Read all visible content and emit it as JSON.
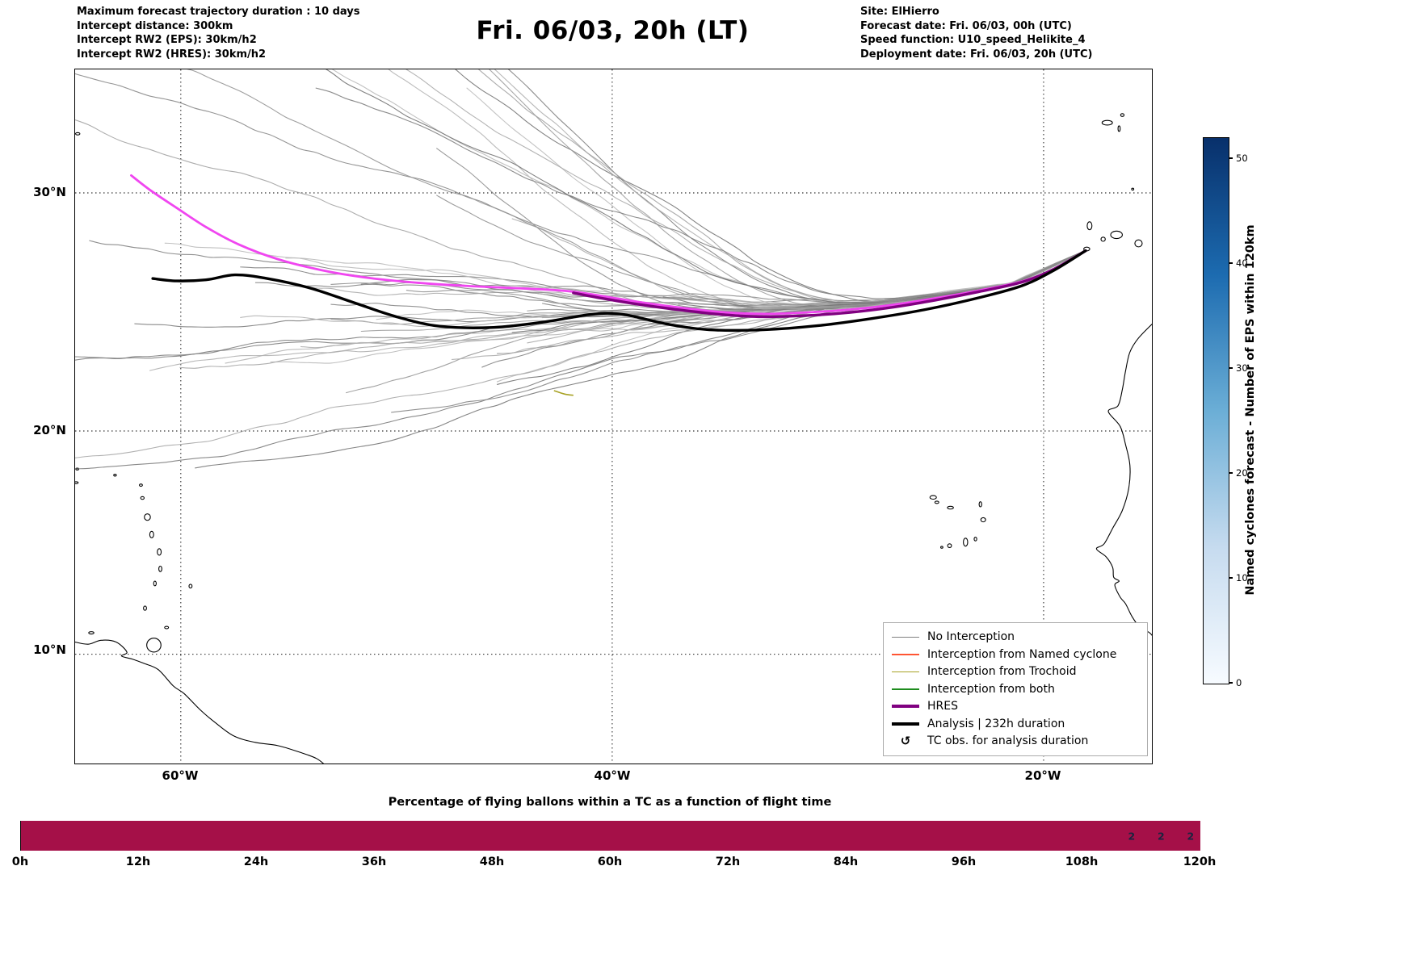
{
  "header": {
    "left_lines": [
      "Maximum forecast trajectory duration : 10 days",
      "Intercept distance: 300km",
      "Intercept RW2 (EPS):  30km/h2",
      "Intercept RW2 (HRES): 30km/h2"
    ],
    "title": "Fri. 06/03, 20h (LT)",
    "right_lines": [
      "Site: ElHierro",
      "Forecast date: Fri. 06/03, 00h (UTC)",
      "Speed function: U10_speed_Helikite_4",
      "Deployment date: Fri. 06/03, 20h (UTC)"
    ]
  },
  "map": {
    "x_tick_labels": [
      "60°W",
      "40°W",
      "20°W"
    ],
    "y_tick_labels": [
      "30°N",
      "20°N",
      "10°N"
    ],
    "legend": {
      "items": [
        {
          "label": "No Interception",
          "color": "#7f7f7f",
          "width": 1.5
        },
        {
          "label": "Interception from Named cyclone",
          "color": "#ff5533",
          "width": 1.5
        },
        {
          "label": "Interception from Trochoid",
          "color": "#a8a224",
          "width": 1.5
        },
        {
          "label": "Interception from both",
          "color": "#1e8c1e",
          "width": 1.5
        },
        {
          "label": "HRES",
          "color": "#800080",
          "width": 4
        },
        {
          "label": "Analysis | 232h duration",
          "color": "#000000",
          "width": 4
        }
      ],
      "tc_obs": {
        "symbol": "↺",
        "label": "TC obs. for analysis duration"
      }
    }
  },
  "colorbar": {
    "label": "Named cyclones forecast - Number of EPS within 120km",
    "ticks": [
      0,
      10,
      20,
      30,
      40,
      50
    ],
    "vmin": 0,
    "vmax": 52,
    "gradient": [
      "#08306b",
      "#1c6bb0",
      "#6baed6",
      "#c6dbef",
      "#f7fbff"
    ]
  },
  "bottom_chart": {
    "title": "Percentage of flying ballons within a TC as a function of flight time",
    "x_ticks": [
      "0h",
      "12h",
      "24h",
      "36h",
      "48h",
      "60h",
      "72h",
      "84h",
      "96h",
      "108h",
      "120h"
    ],
    "bar_color": "#a51048",
    "annotation_color": "#1a2440",
    "annotations": [
      {
        "hour": 113,
        "label": "2"
      },
      {
        "hour": 116,
        "label": "2"
      },
      {
        "hour": 119,
        "label": "2"
      }
    ]
  },
  "chart_data": [
    {
      "type": "line",
      "title": "Fri. 06/03, 20h (LT)",
      "projection": "mercator",
      "lon_range": [
        -64.9,
        -14.98
      ],
      "lat_range": [
        4.97,
        34.8
      ],
      "grid_lons": [
        -60,
        -40,
        -20
      ],
      "grid_lats": [
        30,
        20,
        10
      ],
      "origin": {
        "site": "ElHierro",
        "lon": -18.05,
        "lat": 27.65
      },
      "ensemble": {
        "count": 62,
        "seed": 13,
        "stroke_width": 1.1
      },
      "analysis_track": [
        [
          -18.05,
          27.65
        ],
        [
          -19.5,
          26.85
        ],
        [
          -21,
          26.2
        ],
        [
          -23,
          25.7
        ],
        [
          -25.5,
          25.2
        ],
        [
          -28,
          24.82
        ],
        [
          -30.5,
          24.52
        ],
        [
          -33,
          24.35
        ],
        [
          -35.5,
          24.35
        ],
        [
          -37.5,
          24.6
        ],
        [
          -39.5,
          25.0
        ],
        [
          -41,
          25.0
        ],
        [
          -43,
          24.7
        ],
        [
          -45.5,
          24.45
        ],
        [
          -48,
          24.5
        ],
        [
          -50,
          24.9
        ],
        [
          -52,
          25.5
        ],
        [
          -54,
          26.1
        ],
        [
          -56,
          26.5
        ],
        [
          -57.5,
          26.65
        ],
        [
          -58.8,
          26.45
        ],
        [
          -60.2,
          26.4
        ],
        [
          -61.3,
          26.5
        ]
      ],
      "hres_track": [
        [
          -18.05,
          27.65
        ],
        [
          -19.5,
          26.9
        ],
        [
          -21,
          26.35
        ],
        [
          -23,
          25.95
        ],
        [
          -25,
          25.6
        ],
        [
          -27,
          25.3
        ],
        [
          -29,
          25.08
        ],
        [
          -31,
          24.95
        ],
        [
          -33,
          24.9
        ],
        [
          -35,
          25.0
        ],
        [
          -37,
          25.2
        ],
        [
          -39,
          25.45
        ],
        [
          -40.5,
          25.68
        ],
        [
          -41.8,
          25.9
        ]
      ],
      "eps_track": [
        [
          -18.05,
          27.65
        ],
        [
          -19.5,
          26.9
        ],
        [
          -21,
          26.38
        ],
        [
          -23,
          26.0
        ],
        [
          -25,
          25.68
        ],
        [
          -27,
          25.4
        ],
        [
          -29,
          25.2
        ],
        [
          -31,
          25.08
        ],
        [
          -33,
          25.02
        ],
        [
          -35,
          25.1
        ],
        [
          -37,
          25.3
        ],
        [
          -39,
          25.55
        ],
        [
          -41.8,
          25.95
        ],
        [
          -44,
          26.08
        ],
        [
          -46.5,
          26.18
        ],
        [
          -49,
          26.32
        ],
        [
          -51.5,
          26.55
        ],
        [
          -53.5,
          26.85
        ],
        [
          -55.5,
          27.3
        ],
        [
          -57.3,
          27.9
        ],
        [
          -58.8,
          28.6
        ],
        [
          -60.2,
          29.4
        ],
        [
          -61.4,
          30.1
        ],
        [
          -62.3,
          30.7
        ]
      ],
      "trochoid_track": [
        [
          -42.7,
          21.75
        ],
        [
          -42.2,
          21.6
        ],
        [
          -41.8,
          21.55
        ]
      ],
      "colors": {
        "analysis": "#000000",
        "hres": "#800080",
        "eps": "#f046f0",
        "trochoid": "#a8a224",
        "ensemble": "gray"
      },
      "basemap": {
        "coastlines": [
          [
            [
              -14.85,
              24.7
            ],
            [
              -15.6,
              24.0
            ],
            [
              -16.0,
              23.4
            ],
            [
              -16.2,
              22.6
            ],
            [
              -16.35,
              21.8
            ],
            [
              -16.55,
              21.1
            ],
            [
              -17.0,
              20.85
            ],
            [
              -16.45,
              20.2
            ],
            [
              -16.2,
              19.4
            ],
            [
              -16.0,
              18.5
            ],
            [
              -16.05,
              17.5
            ],
            [
              -16.35,
              16.5
            ],
            [
              -16.8,
              15.7
            ],
            [
              -17.2,
              15.0
            ],
            [
              -17.55,
              14.78
            ],
            [
              -17.1,
              14.42
            ],
            [
              -16.8,
              13.95
            ],
            [
              -16.75,
              13.5
            ],
            [
              -16.5,
              13.33
            ],
            [
              -16.7,
              13.15
            ],
            [
              -16.45,
              12.6
            ],
            [
              -16.2,
              12.3
            ],
            [
              -15.9,
              11.72
            ],
            [
              -15.55,
              11.25
            ],
            [
              -15.05,
              10.95
            ],
            [
              -14.65,
              10.4
            ],
            [
              -14.25,
              9.8
            ],
            [
              -13.8,
              9.2
            ],
            [
              -13.4,
              8.6
            ],
            [
              -13.15,
              8.0
            ],
            [
              -12.7,
              7.5
            ],
            [
              -12.0,
              7.0
            ],
            [
              -11.2,
              6.6
            ],
            [
              -10.4,
              6.1
            ],
            [
              -9.6,
              5.5
            ],
            [
              -8.9,
              4.9
            ]
          ],
          [
            [
              -65.0,
              10.58
            ],
            [
              -64.3,
              10.46
            ],
            [
              -63.7,
              10.64
            ],
            [
              -63.0,
              10.56
            ],
            [
              -62.5,
              10.1
            ],
            [
              -62.75,
              9.92
            ],
            [
              -62.25,
              9.78
            ],
            [
              -61.7,
              9.58
            ],
            [
              -61.05,
              9.3
            ],
            [
              -60.35,
              8.55
            ],
            [
              -59.85,
              8.2
            ],
            [
              -59.1,
              7.45
            ],
            [
              -58.45,
              6.9
            ],
            [
              -57.55,
              6.25
            ],
            [
              -56.55,
              5.95
            ],
            [
              -55.5,
              5.8
            ],
            [
              -54.5,
              5.5
            ],
            [
              -53.7,
              5.2
            ],
            [
              -53.2,
              4.8
            ]
          ]
        ],
        "islands": [
          [
            -17.05,
            32.78,
            0.24,
            0.1
          ],
          [
            -16.35,
            33.08,
            0.08,
            0.06
          ],
          [
            -16.5,
            32.55,
            0.05,
            0.12
          ],
          [
            -15.87,
            30.15,
            0.05,
            0.04
          ],
          [
            -18.0,
            27.72,
            0.14,
            0.08
          ],
          [
            -17.87,
            28.67,
            0.11,
            0.17
          ],
          [
            -17.24,
            28.12,
            0.1,
            0.09
          ],
          [
            -16.62,
            28.3,
            0.27,
            0.16
          ],
          [
            -15.6,
            27.95,
            0.17,
            0.15
          ],
          [
            -64.78,
            32.35,
            0.1,
            0.05
          ],
          [
            -25.12,
            17.08,
            0.15,
            0.08
          ],
          [
            -24.95,
            16.86,
            0.09,
            0.05
          ],
          [
            -24.32,
            16.62,
            0.14,
            0.06
          ],
          [
            -22.93,
            16.77,
            0.06,
            0.11
          ],
          [
            -22.8,
            16.08,
            0.11,
            0.09
          ],
          [
            -23.62,
            15.08,
            0.1,
            0.17
          ],
          [
            -24.36,
            14.92,
            0.09,
            0.08
          ],
          [
            -24.72,
            14.85,
            0.05,
            0.04
          ],
          [
            -23.16,
            15.22,
            0.06,
            0.08
          ],
          [
            -64.85,
            17.73,
            0.09,
            0.04
          ],
          [
            -64.8,
            18.33,
            0.07,
            0.04
          ],
          [
            -63.05,
            18.06,
            0.06,
            0.04
          ],
          [
            -61.85,
            17.62,
            0.07,
            0.05
          ],
          [
            -61.78,
            17.05,
            0.08,
            0.06
          ],
          [
            -61.55,
            16.2,
            0.14,
            0.14
          ],
          [
            -61.35,
            15.42,
            0.09,
            0.14
          ],
          [
            -61.0,
            14.64,
            0.09,
            0.14
          ],
          [
            -60.95,
            13.88,
            0.07,
            0.12
          ],
          [
            -61.2,
            13.22,
            0.06,
            0.1
          ],
          [
            -59.55,
            13.1,
            0.07,
            0.08
          ],
          [
            -61.66,
            12.1,
            0.07,
            0.09
          ],
          [
            -60.66,
            11.22,
            0.09,
            0.05
          ],
          [
            -61.25,
            10.42,
            0.33,
            0.3
          ],
          [
            -64.15,
            10.98,
            0.12,
            0.05
          ]
        ]
      }
    },
    {
      "type": "bar",
      "title": "Percentage of flying ballons within a TC as a function of flight time",
      "x_range_hours": [
        0,
        120
      ],
      "x_tick_step_hours": 12,
      "value_percent": 100,
      "bar_color": "#a51048",
      "annotations": [
        {
          "hour": 113,
          "label": "2"
        },
        {
          "hour": 116,
          "label": "2"
        },
        {
          "hour": 119,
          "label": "2"
        }
      ]
    }
  ]
}
